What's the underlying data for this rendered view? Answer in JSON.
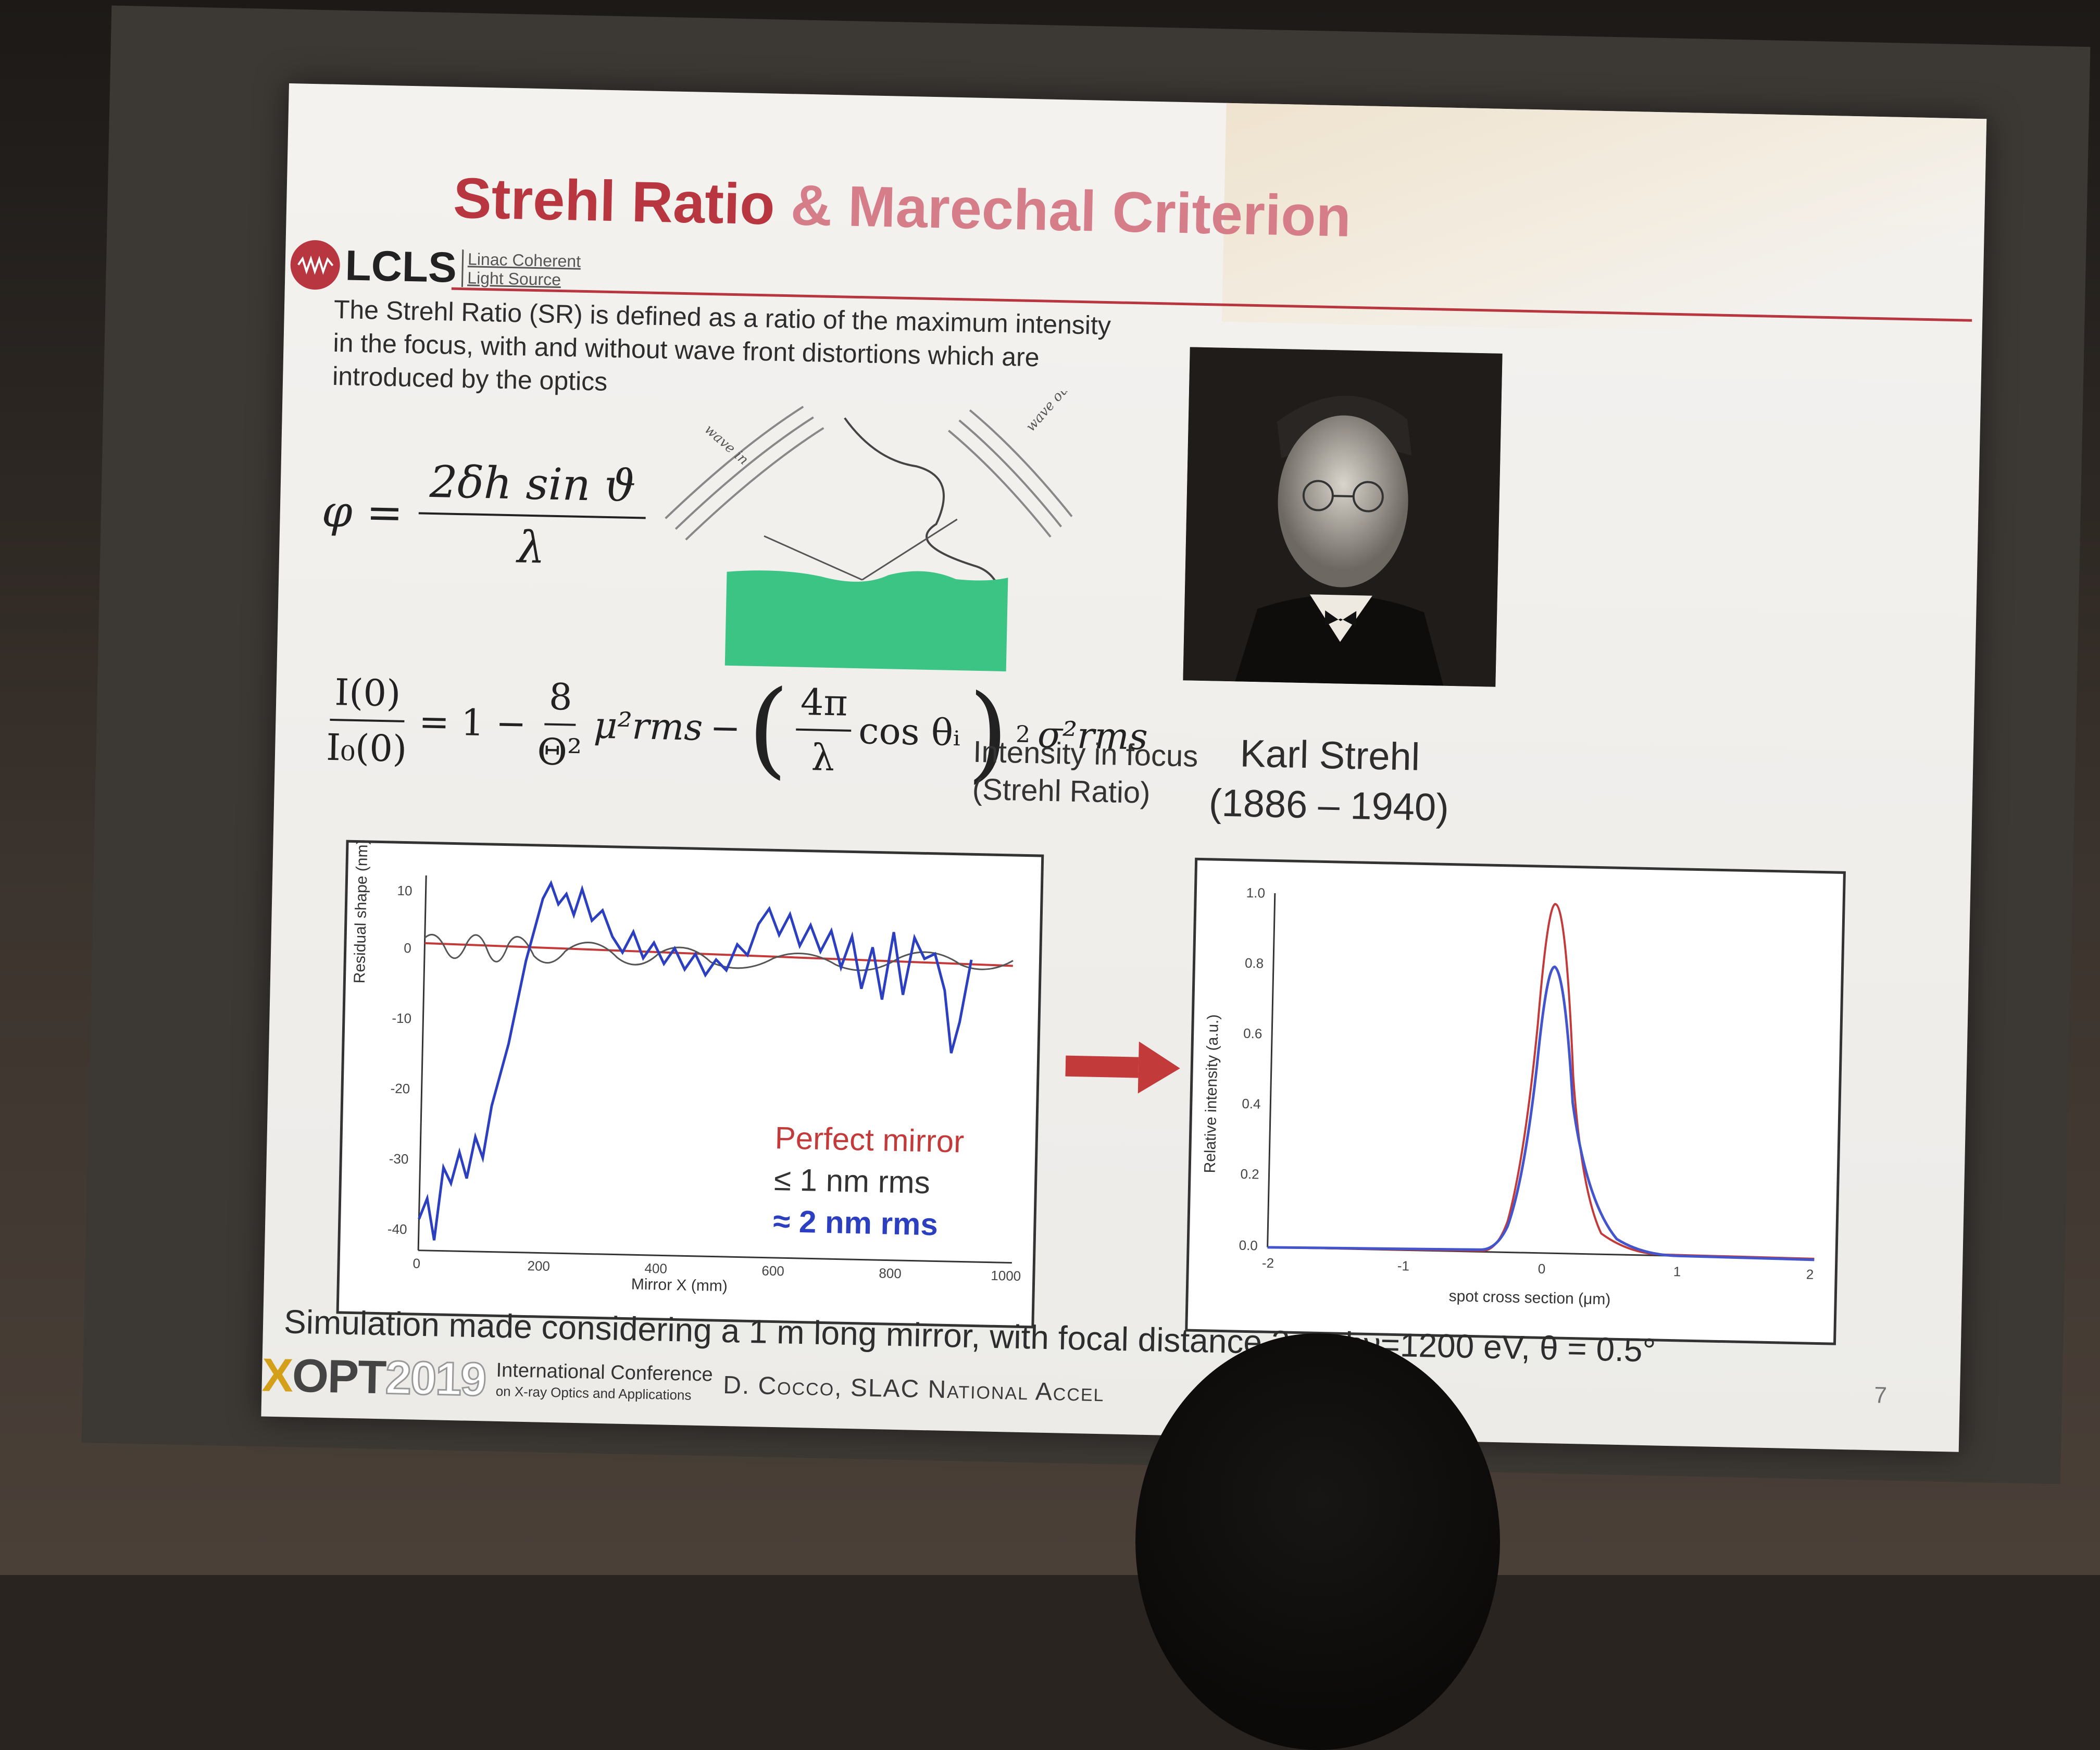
{
  "slide": {
    "title_part1": "Strehl Ratio",
    "title_part2": " & Marechal Criterion",
    "logo": {
      "name": "LCLS",
      "sub_line1": "Linac Coherent",
      "sub_line2": "Light Source"
    },
    "intro": "The Strehl Ratio (SR) is defined as a ratio of the maximum intensity in the focus, with and without wave front distortions which are introduced by the optics",
    "eq1": {
      "lhs": "φ =",
      "numerator": "2δh sin ϑ",
      "denominator": "λ"
    },
    "eq2": {
      "lhs_num": "I(0)",
      "lhs_den": "I₀(0)",
      "part1": "= 1 −",
      "frac_num": "8",
      "frac_den": "Θ²",
      "mu": "μ²rms",
      "minus": "−",
      "inner_num": "4π",
      "inner_den": "λ",
      "cos": "cos θᵢ",
      "exp": "2",
      "sigma": "σ²rms"
    },
    "diagram": {
      "wave_in": "wave in",
      "wave_out": "wave out"
    },
    "focus_line1": "Intensity in focus",
    "focus_line2": "(Strehl Ratio)",
    "caption_name": "Karl Strehl",
    "caption_years": "(1886 – 1940)",
    "left_chart": {
      "ylabel": "Residual shape (nm)",
      "xlabel": "Mirror X (mm)",
      "xticks": [
        "0",
        "200",
        "400",
        "600",
        "800",
        "1000"
      ],
      "yticks": [
        "10",
        "0",
        "-10",
        "-20",
        "-30",
        "-40"
      ],
      "legend": [
        "Perfect mirror",
        "≤ 1 nm rms",
        "≈ 2 nm rms"
      ]
    },
    "right_chart": {
      "ylabel": "Relative intensity (a.u.)",
      "xlabel": "spot cross section (μm)",
      "xticks": [
        "-2",
        "-1",
        "0",
        "1",
        "2"
      ],
      "yticks": [
        "1.0",
        "0.8",
        "0.6",
        "0.4",
        "0.2",
        "0.0"
      ]
    },
    "simulation_note": "Simulation made considering a 1 m long mirror, with focal distance 2 m, hν=1200 eV, θ = 0.5°",
    "footer": {
      "xopt_x": "X",
      "xopt": "OPT",
      "year": "2019",
      "conf_line1": "International Conference",
      "conf_line2": "on X-ray Optics and Applications",
      "author": "D. Cocco, SLAC National Accel",
      "page": "7"
    }
  },
  "colors": {
    "accent": "#b8363f",
    "perfect": "#c33a3a",
    "blue": "#2b3fbf",
    "green": "#3cc485"
  }
}
